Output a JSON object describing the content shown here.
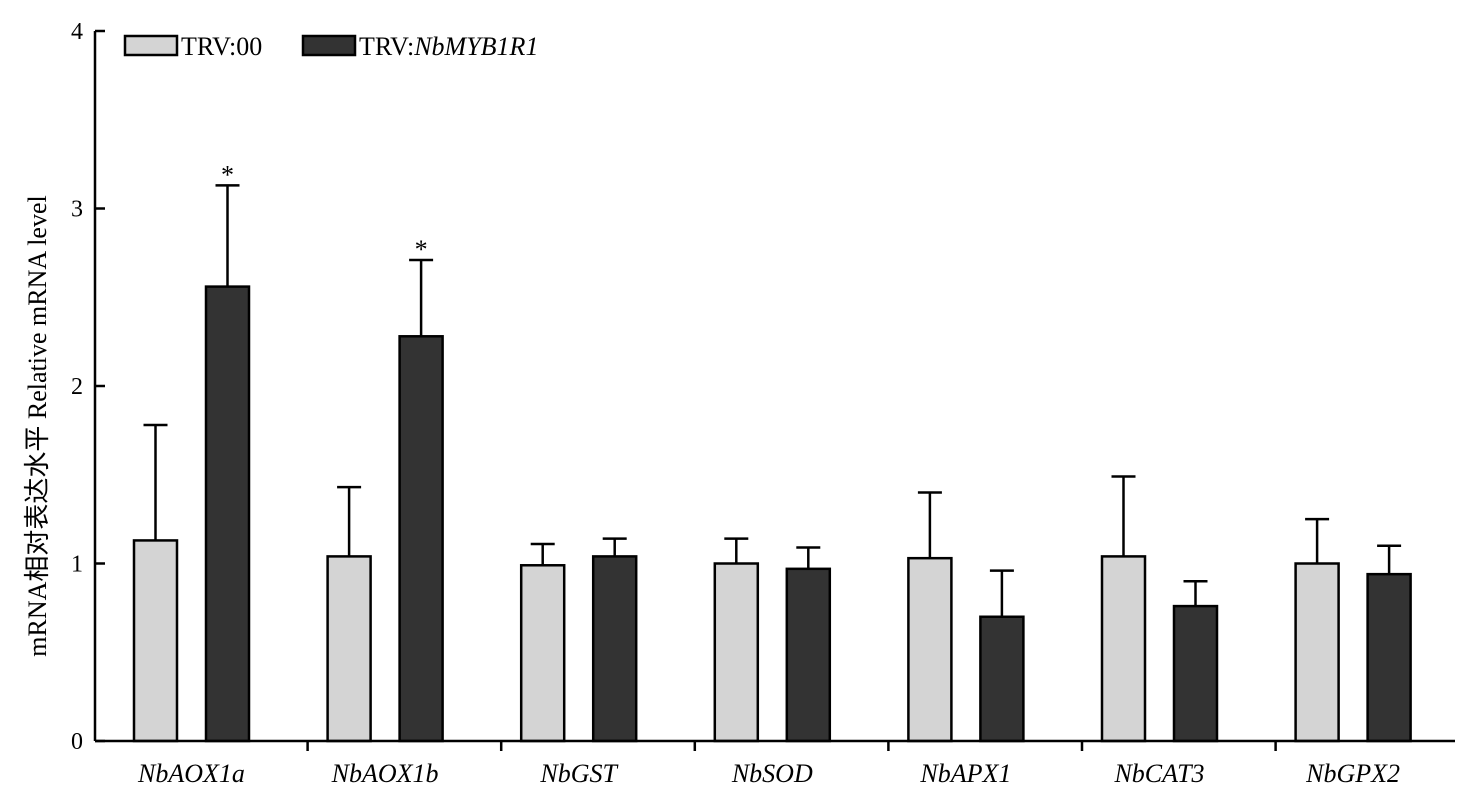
{
  "chart_data": {
    "type": "bar",
    "title": "",
    "xlabel": "",
    "ylabel": "mRNA相对表达水平 Relative mRNA level",
    "ylim": [
      0,
      4
    ],
    "yticks": [
      0,
      1,
      2,
      3,
      4
    ],
    "grid": false,
    "legend_position": "top-left",
    "categories": [
      "NbAOX1a",
      "NbAOX1b",
      "NbGST",
      "NbSOD",
      "NbAPX1",
      "NbCAT3",
      "NbGPX2"
    ],
    "series": [
      {
        "name": "TRV:00",
        "legend_prefix": "TRV:00",
        "legend_italic": "",
        "color": "#d4d4d4",
        "values": [
          1.13,
          1.04,
          0.99,
          1.0,
          1.03,
          1.04,
          1.0
        ],
        "errors": [
          0.65,
          0.39,
          0.12,
          0.14,
          0.37,
          0.45,
          0.25
        ],
        "significance": [
          "",
          "",
          "",
          "",
          "",
          "",
          ""
        ]
      },
      {
        "name": "TRV:NbMYB1R1",
        "legend_prefix": "TRV:",
        "legend_italic": "NbMYB1R1",
        "color": "#333333",
        "values": [
          2.56,
          2.28,
          1.04,
          0.97,
          0.7,
          0.76,
          0.94
        ],
        "errors": [
          0.57,
          0.43,
          0.1,
          0.12,
          0.26,
          0.14,
          0.16
        ],
        "significance": [
          "*",
          "*",
          "",
          "",
          "",
          "",
          ""
        ]
      }
    ]
  }
}
